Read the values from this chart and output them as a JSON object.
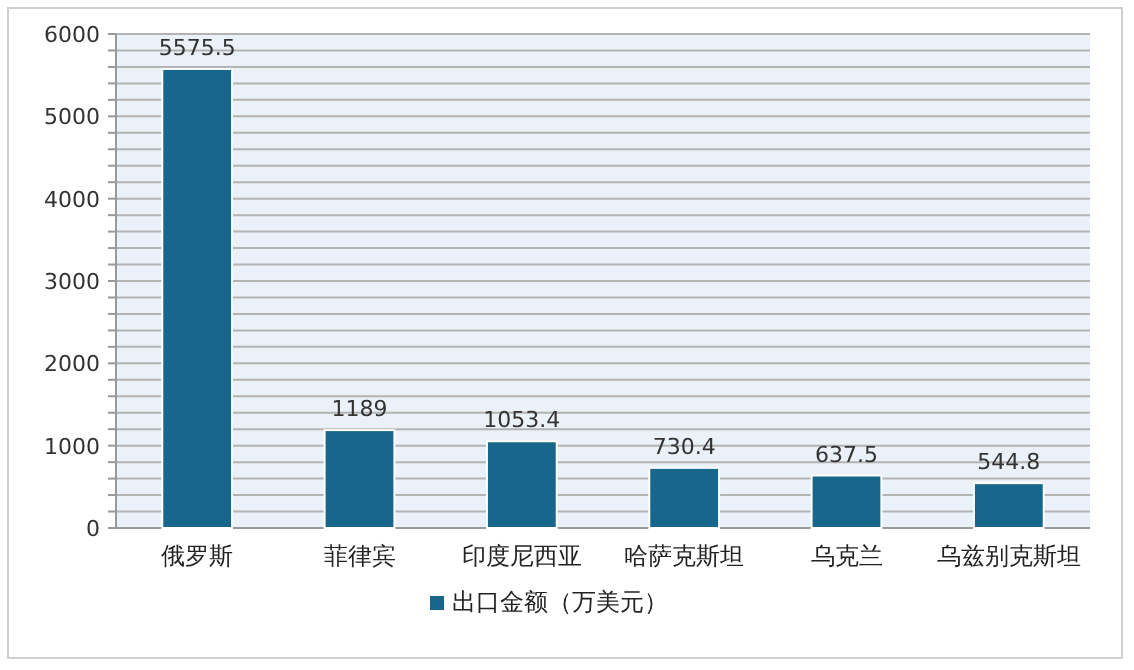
{
  "chart_data": {
    "type": "bar",
    "categories": [
      "俄罗斯",
      "菲律宾",
      "印度尼西亚",
      "哈萨克斯坦",
      "乌克兰",
      "乌兹别克斯坦"
    ],
    "series": [
      {
        "name": "出口金额（万美元）",
        "color": "#17668b",
        "values": [
          5575.5,
          1189,
          1053.4,
          730.4,
          637.5,
          544.8
        ]
      }
    ],
    "data_labels": true,
    "grid": "y",
    "legend": "bottom",
    "ylim": [
      0,
      6000
    ],
    "yticks": [
      0,
      {
        "value": 200,
        "label": null
      },
      {
        "value": 400,
        "label": null
      },
      {
        "value": 600,
        "label": null
      },
      {
        "value": 800,
        "label": null
      },
      1000,
      {
        "value": 1200,
        "label": null
      },
      {
        "value": 1400,
        "label": null
      },
      {
        "value": 1600,
        "label": null
      },
      {
        "value": 1800,
        "label": null
      },
      2000,
      {
        "value": 2200,
        "label": null
      },
      {
        "value": 2400,
        "label": null
      },
      {
        "value": 2600,
        "label": null
      },
      {
        "value": 2800,
        "label": null
      },
      3000,
      {
        "value": 3200,
        "label": null
      },
      {
        "value": 3400,
        "label": null
      },
      {
        "value": 3600,
        "label": null
      },
      {
        "value": 3800,
        "label": null
      },
      4000,
      {
        "value": 4200,
        "label": null
      },
      {
        "value": 4400,
        "label": null
      },
      {
        "value": 4600,
        "label": null
      },
      {
        "value": 4800,
        "label": null
      },
      5000,
      {
        "value": 5200,
        "label": null
      },
      {
        "value": 5400,
        "label": null
      },
      {
        "value": 5600,
        "label": null
      },
      {
        "value": 5800,
        "label": null
      },
      6000
    ]
  }
}
